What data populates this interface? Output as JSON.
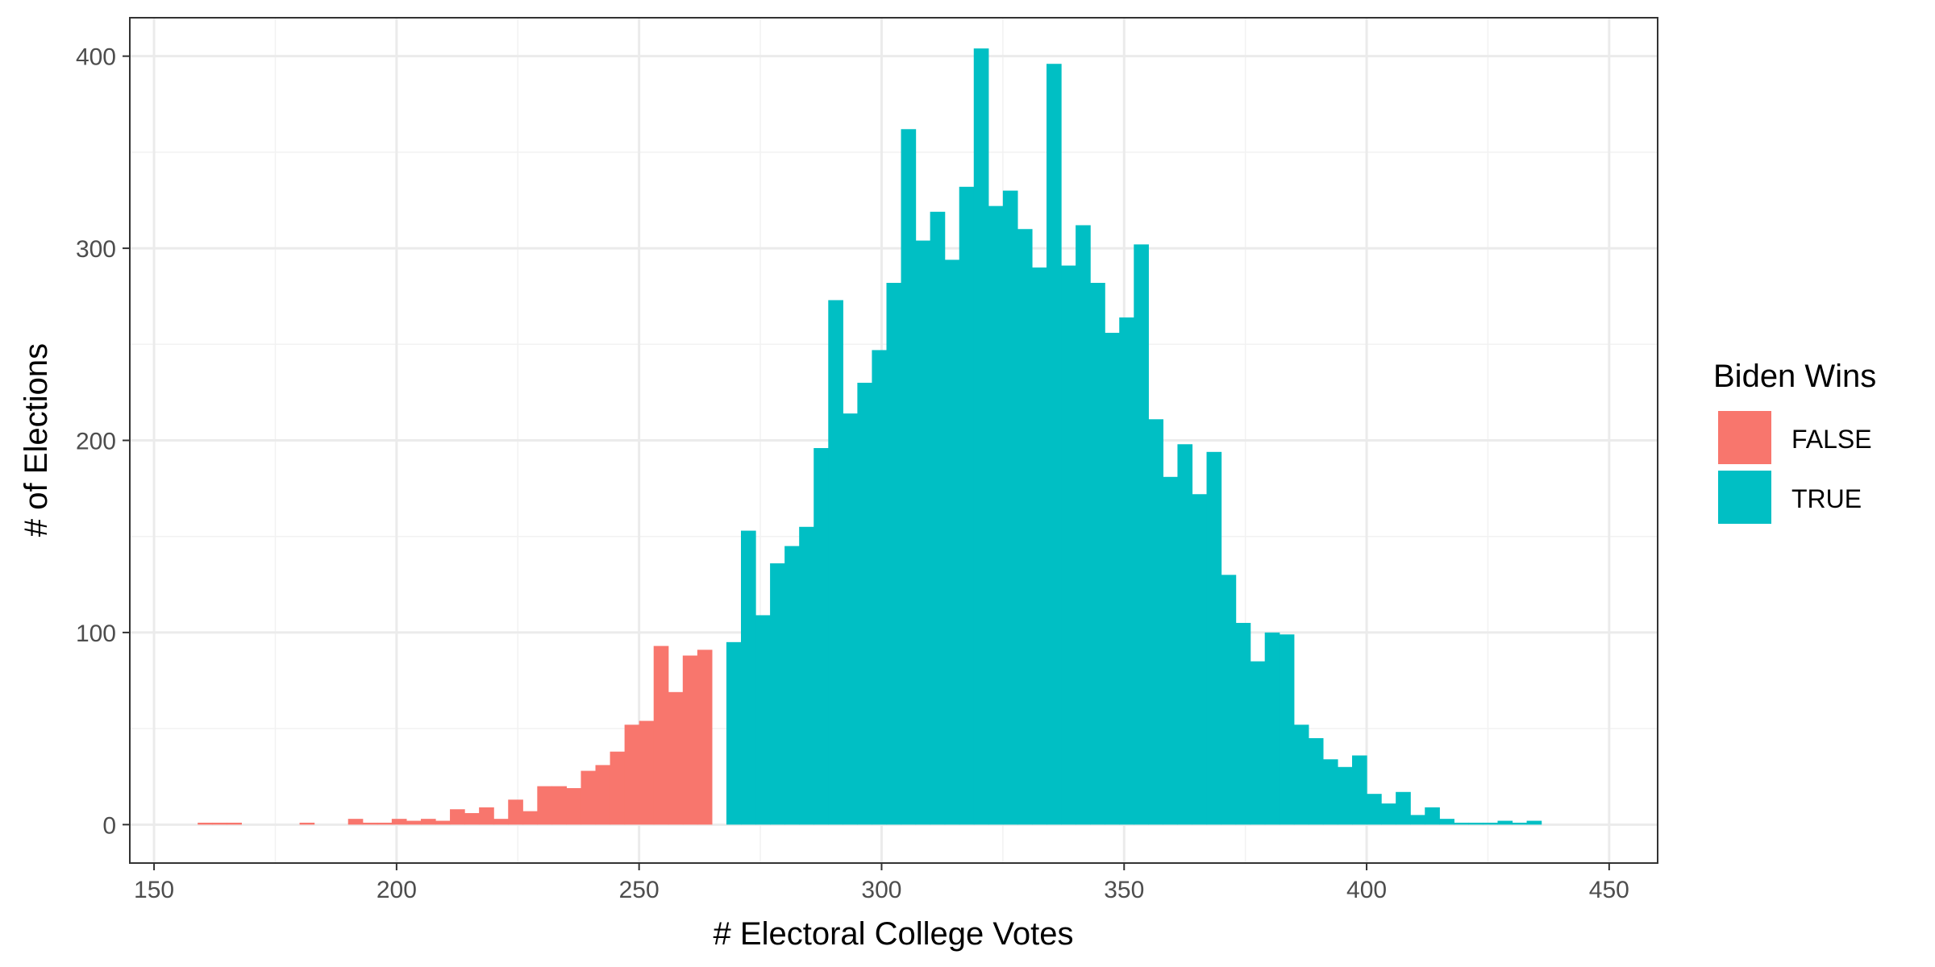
{
  "chart_data": {
    "type": "bar",
    "title": "",
    "xlabel": "# Electoral College Votes",
    "ylabel": "# of Elections",
    "xlim": [
      145,
      460
    ],
    "ylim": [
      -20,
      420
    ],
    "xticks": [
      150,
      200,
      250,
      300,
      350,
      400,
      450
    ],
    "yticks": [
      0,
      100,
      200,
      300,
      400
    ],
    "grid": true,
    "bin_width": 3,
    "legend": {
      "title": "Biden Wins",
      "placement": "right",
      "entries": [
        {
          "label": "FALSE",
          "color": "#F8766D"
        },
        {
          "label": "TRUE",
          "color": "#00BFC4"
        }
      ]
    },
    "series": [
      {
        "name": "FALSE",
        "color": "#F8766D",
        "bins": [
          [
            159,
            1
          ],
          [
            162,
            1
          ],
          [
            165,
            1
          ],
          [
            180,
            1
          ],
          [
            190,
            3
          ],
          [
            193,
            1
          ],
          [
            196,
            1
          ],
          [
            199,
            3
          ],
          [
            202,
            2
          ],
          [
            205,
            3
          ],
          [
            208,
            2
          ],
          [
            211,
            8
          ],
          [
            214,
            6
          ],
          [
            217,
            9
          ],
          [
            220,
            3
          ],
          [
            223,
            13
          ],
          [
            226,
            7
          ],
          [
            229,
            20
          ],
          [
            232,
            20
          ],
          [
            235,
            19
          ],
          [
            238,
            28
          ],
          [
            241,
            31
          ],
          [
            244,
            38
          ],
          [
            247,
            52
          ],
          [
            250,
            54
          ],
          [
            253,
            93
          ],
          [
            256,
            69
          ],
          [
            259,
            88
          ],
          [
            262,
            91
          ]
        ]
      },
      {
        "name": "TRUE",
        "color": "#00BFC4",
        "bins": [
          [
            268,
            95
          ],
          [
            271,
            153
          ],
          [
            274,
            109
          ],
          [
            277,
            136
          ],
          [
            280,
            145
          ],
          [
            283,
            155
          ],
          [
            286,
            196
          ],
          [
            289,
            273
          ],
          [
            292,
            214
          ],
          [
            295,
            230
          ],
          [
            298,
            247
          ],
          [
            301,
            282
          ],
          [
            304,
            362
          ],
          [
            307,
            304
          ],
          [
            310,
            319
          ],
          [
            313,
            294
          ],
          [
            316,
            332
          ],
          [
            319,
            404
          ],
          [
            322,
            322
          ],
          [
            325,
            330
          ],
          [
            328,
            310
          ],
          [
            331,
            290
          ],
          [
            334,
            396
          ],
          [
            337,
            291
          ],
          [
            340,
            312
          ],
          [
            343,
            282
          ],
          [
            346,
            256
          ],
          [
            349,
            264
          ],
          [
            352,
            302
          ],
          [
            355,
            211
          ],
          [
            358,
            181
          ],
          [
            361,
            198
          ],
          [
            364,
            172
          ],
          [
            367,
            194
          ],
          [
            370,
            130
          ],
          [
            373,
            105
          ],
          [
            376,
            85
          ],
          [
            379,
            100
          ],
          [
            382,
            99
          ],
          [
            385,
            52
          ],
          [
            388,
            45
          ],
          [
            391,
            34
          ],
          [
            394,
            30
          ],
          [
            397,
            36
          ],
          [
            400,
            16
          ],
          [
            403,
            11
          ],
          [
            406,
            17
          ],
          [
            409,
            5
          ],
          [
            412,
            9
          ],
          [
            415,
            3
          ],
          [
            418,
            1
          ],
          [
            421,
            1
          ],
          [
            424,
            1
          ],
          [
            427,
            2
          ],
          [
            430,
            1
          ],
          [
            433,
            2
          ]
        ]
      }
    ]
  }
}
